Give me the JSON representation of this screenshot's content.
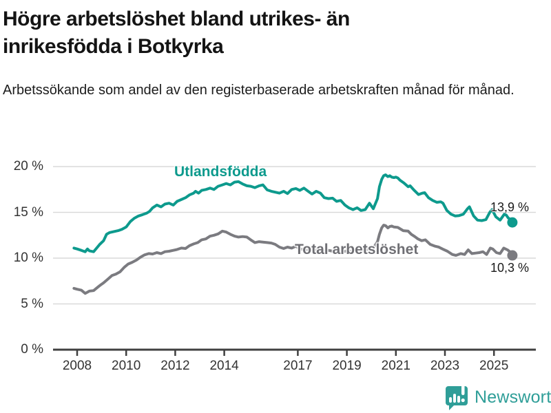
{
  "header": {
    "title_lines": [
      "Högre arbetslöshet bland utrikes- än",
      "inrikesfödda i Botkyrka"
    ],
    "subtitle": "Arbetssökande som andel av den registerbaserade arbetskraften månad för månad."
  },
  "footer": {
    "brand": "Newsworthy"
  },
  "colors": {
    "series1": "#0d9a8d",
    "series2": "#7b7b80",
    "grid": "#d9d9d9",
    "axis": "#3f3f3f",
    "brand": "#2f9e98"
  },
  "chart_data": {
    "type": "line",
    "title": "Högre arbetslöshet bland utrikes- än inrikesfödda i Botkyrka",
    "subtitle": "Arbetssökande som andel av den registerbaserade arbetskraften månad för månad.",
    "xlabel": "",
    "ylabel": "",
    "xlim": [
      2007.8,
      2026.3
    ],
    "ylim": [
      0,
      21
    ],
    "grid": true,
    "legend_position": "inline-labels",
    "x_ticks": [
      2008,
      2010,
      2012,
      2014,
      2017,
      2019,
      2021,
      2023,
      2025
    ],
    "y_ticks": [
      {
        "label": "20 %",
        "value": 20
      },
      {
        "label": "15 %",
        "value": 15
      },
      {
        "label": "10 %",
        "value": 10
      },
      {
        "label": "5 %",
        "value": 5
      },
      {
        "label": "0 %",
        "value": 0
      }
    ],
    "series": [
      {
        "name": "Utlandsfödda",
        "color": "#0d9a8d",
        "end_label": "13,9 %",
        "end_value": 13.9,
        "points": [
          [
            2007.87,
            11.1
          ],
          [
            2008.0,
            11.0
          ],
          [
            2008.17,
            10.85
          ],
          [
            2008.33,
            10.7
          ],
          [
            2008.42,
            11.0
          ],
          [
            2008.5,
            10.8
          ],
          [
            2008.67,
            10.7
          ],
          [
            2008.83,
            11.2
          ],
          [
            2008.92,
            11.5
          ],
          [
            2009.08,
            11.9
          ],
          [
            2009.2,
            12.6
          ],
          [
            2009.33,
            12.8
          ],
          [
            2009.5,
            12.9
          ],
          [
            2009.67,
            13.0
          ],
          [
            2009.83,
            13.15
          ],
          [
            2010.0,
            13.4
          ],
          [
            2010.17,
            14.0
          ],
          [
            2010.33,
            14.35
          ],
          [
            2010.5,
            14.6
          ],
          [
            2010.67,
            14.75
          ],
          [
            2010.83,
            14.9
          ],
          [
            2010.95,
            15.1
          ],
          [
            2011.08,
            15.5
          ],
          [
            2011.25,
            15.8
          ],
          [
            2011.42,
            15.6
          ],
          [
            2011.58,
            15.9
          ],
          [
            2011.75,
            16.0
          ],
          [
            2011.92,
            15.8
          ],
          [
            2012.08,
            16.2
          ],
          [
            2012.25,
            16.4
          ],
          [
            2012.42,
            16.6
          ],
          [
            2012.58,
            16.9
          ],
          [
            2012.75,
            17.1
          ],
          [
            2012.83,
            17.3
          ],
          [
            2012.95,
            17.1
          ],
          [
            2013.08,
            17.4
          ],
          [
            2013.25,
            17.5
          ],
          [
            2013.42,
            17.65
          ],
          [
            2013.58,
            17.5
          ],
          [
            2013.75,
            17.85
          ],
          [
            2013.92,
            18.0
          ],
          [
            2014.08,
            18.15
          ],
          [
            2014.25,
            18.0
          ],
          [
            2014.42,
            18.3
          ],
          [
            2014.58,
            18.35
          ],
          [
            2014.75,
            18.1
          ],
          [
            2014.92,
            17.9
          ],
          [
            2015.08,
            17.85
          ],
          [
            2015.25,
            17.7
          ],
          [
            2015.42,
            17.9
          ],
          [
            2015.58,
            18.0
          ],
          [
            2015.75,
            17.45
          ],
          [
            2015.92,
            17.3
          ],
          [
            2016.08,
            17.2
          ],
          [
            2016.25,
            17.1
          ],
          [
            2016.42,
            17.3
          ],
          [
            2016.58,
            17.05
          ],
          [
            2016.75,
            17.5
          ],
          [
            2016.92,
            17.6
          ],
          [
            2017.08,
            17.4
          ],
          [
            2017.25,
            17.65
          ],
          [
            2017.42,
            17.3
          ],
          [
            2017.58,
            17.0
          ],
          [
            2017.75,
            17.3
          ],
          [
            2017.92,
            17.1
          ],
          [
            2018.08,
            16.6
          ],
          [
            2018.25,
            16.5
          ],
          [
            2018.42,
            16.55
          ],
          [
            2018.58,
            16.2
          ],
          [
            2018.75,
            16.3
          ],
          [
            2018.92,
            15.8
          ],
          [
            2019.08,
            15.5
          ],
          [
            2019.25,
            15.3
          ],
          [
            2019.42,
            15.5
          ],
          [
            2019.58,
            15.2
          ],
          [
            2019.75,
            15.3
          ],
          [
            2019.92,
            16.0
          ],
          [
            2020.0,
            15.7
          ],
          [
            2020.08,
            15.4
          ],
          [
            2020.25,
            16.5
          ],
          [
            2020.33,
            17.8
          ],
          [
            2020.42,
            18.6
          ],
          [
            2020.5,
            19.0
          ],
          [
            2020.58,
            19.1
          ],
          [
            2020.67,
            18.9
          ],
          [
            2020.75,
            19.0
          ],
          [
            2020.83,
            18.85
          ],
          [
            2020.92,
            18.8
          ],
          [
            2021.0,
            18.85
          ],
          [
            2021.08,
            18.75
          ],
          [
            2021.17,
            18.5
          ],
          [
            2021.33,
            18.2
          ],
          [
            2021.5,
            17.8
          ],
          [
            2021.58,
            17.9
          ],
          [
            2021.75,
            17.4
          ],
          [
            2021.92,
            16.95
          ],
          [
            2022.08,
            17.1
          ],
          [
            2022.17,
            17.15
          ],
          [
            2022.33,
            16.6
          ],
          [
            2022.5,
            16.3
          ],
          [
            2022.67,
            16.1
          ],
          [
            2022.83,
            16.15
          ],
          [
            2022.92,
            16.0
          ],
          [
            2023.08,
            15.2
          ],
          [
            2023.25,
            14.8
          ],
          [
            2023.42,
            14.6
          ],
          [
            2023.58,
            14.65
          ],
          [
            2023.75,
            14.8
          ],
          [
            2023.92,
            15.4
          ],
          [
            2024.0,
            15.6
          ],
          [
            2024.17,
            14.6
          ],
          [
            2024.33,
            14.15
          ],
          [
            2024.5,
            14.1
          ],
          [
            2024.67,
            14.2
          ],
          [
            2024.83,
            15.0
          ],
          [
            2024.92,
            15.3
          ],
          [
            2025.08,
            14.5
          ],
          [
            2025.25,
            14.15
          ],
          [
            2025.42,
            14.8
          ],
          [
            2025.5,
            14.7
          ],
          [
            2025.58,
            14.4
          ],
          [
            2025.67,
            14.2
          ],
          [
            2025.75,
            13.9
          ]
        ]
      },
      {
        "name": "Total arbetslöshet",
        "color": "#7b7b80",
        "end_label": "10,3 %",
        "end_value": 10.3,
        "points": [
          [
            2007.87,
            6.7
          ],
          [
            2008.0,
            6.6
          ],
          [
            2008.17,
            6.5
          ],
          [
            2008.33,
            6.15
          ],
          [
            2008.5,
            6.4
          ],
          [
            2008.67,
            6.45
          ],
          [
            2008.83,
            6.8
          ],
          [
            2008.92,
            7.0
          ],
          [
            2009.08,
            7.3
          ],
          [
            2009.25,
            7.7
          ],
          [
            2009.42,
            8.1
          ],
          [
            2009.58,
            8.25
          ],
          [
            2009.75,
            8.5
          ],
          [
            2009.92,
            9.0
          ],
          [
            2010.08,
            9.35
          ],
          [
            2010.25,
            9.55
          ],
          [
            2010.42,
            9.8
          ],
          [
            2010.58,
            10.1
          ],
          [
            2010.75,
            10.35
          ],
          [
            2010.92,
            10.5
          ],
          [
            2011.08,
            10.45
          ],
          [
            2011.25,
            10.6
          ],
          [
            2011.42,
            10.5
          ],
          [
            2011.58,
            10.7
          ],
          [
            2011.75,
            10.75
          ],
          [
            2011.92,
            10.85
          ],
          [
            2012.08,
            10.95
          ],
          [
            2012.25,
            11.1
          ],
          [
            2012.42,
            11.05
          ],
          [
            2012.58,
            11.35
          ],
          [
            2012.75,
            11.55
          ],
          [
            2012.92,
            11.7
          ],
          [
            2013.08,
            12.0
          ],
          [
            2013.25,
            12.1
          ],
          [
            2013.42,
            12.4
          ],
          [
            2013.58,
            12.5
          ],
          [
            2013.75,
            12.65
          ],
          [
            2013.92,
            12.95
          ],
          [
            2014.08,
            12.85
          ],
          [
            2014.25,
            12.6
          ],
          [
            2014.42,
            12.4
          ],
          [
            2014.58,
            12.3
          ],
          [
            2014.75,
            12.35
          ],
          [
            2014.92,
            12.3
          ],
          [
            2015.08,
            12.0
          ],
          [
            2015.25,
            11.7
          ],
          [
            2015.42,
            11.8
          ],
          [
            2015.58,
            11.75
          ],
          [
            2015.75,
            11.7
          ],
          [
            2015.92,
            11.65
          ],
          [
            2016.08,
            11.5
          ],
          [
            2016.25,
            11.2
          ],
          [
            2016.42,
            11.05
          ],
          [
            2016.58,
            11.2
          ],
          [
            2016.75,
            11.1
          ],
          [
            2016.92,
            11.3
          ],
          [
            2017.08,
            11.0
          ],
          [
            2017.25,
            10.95
          ],
          [
            2017.42,
            10.9
          ],
          [
            2017.58,
            10.85
          ],
          [
            2017.75,
            10.9
          ],
          [
            2017.92,
            10.85
          ],
          [
            2018.08,
            10.8
          ],
          [
            2018.25,
            10.85
          ],
          [
            2018.42,
            10.75
          ],
          [
            2018.58,
            10.8
          ],
          [
            2018.75,
            10.7
          ],
          [
            2018.92,
            10.75
          ],
          [
            2019.08,
            10.8
          ],
          [
            2019.25,
            10.7
          ],
          [
            2019.42,
            10.75
          ],
          [
            2019.58,
            10.8
          ],
          [
            2019.75,
            10.9
          ],
          [
            2019.92,
            11.0
          ],
          [
            2020.08,
            11.1
          ],
          [
            2020.25,
            11.8
          ],
          [
            2020.33,
            12.6
          ],
          [
            2020.42,
            13.3
          ],
          [
            2020.5,
            13.6
          ],
          [
            2020.58,
            13.55
          ],
          [
            2020.67,
            13.3
          ],
          [
            2020.75,
            13.45
          ],
          [
            2020.83,
            13.5
          ],
          [
            2020.92,
            13.4
          ],
          [
            2021.08,
            13.35
          ],
          [
            2021.3,
            13.0
          ],
          [
            2021.5,
            12.95
          ],
          [
            2021.63,
            12.6
          ],
          [
            2021.77,
            12.35
          ],
          [
            2021.9,
            12.1
          ],
          [
            2022.05,
            11.9
          ],
          [
            2022.2,
            12.0
          ],
          [
            2022.4,
            11.5
          ],
          [
            2022.6,
            11.3
          ],
          [
            2022.75,
            11.2
          ],
          [
            2022.9,
            11.0
          ],
          [
            2023.1,
            10.75
          ],
          [
            2023.3,
            10.4
          ],
          [
            2023.45,
            10.3
          ],
          [
            2023.65,
            10.5
          ],
          [
            2023.8,
            10.4
          ],
          [
            2023.95,
            10.9
          ],
          [
            2024.1,
            10.5
          ],
          [
            2024.25,
            10.55
          ],
          [
            2024.4,
            10.6
          ],
          [
            2024.55,
            10.7
          ],
          [
            2024.7,
            10.4
          ],
          [
            2024.85,
            11.1
          ],
          [
            2024.95,
            11.0
          ],
          [
            2025.1,
            10.6
          ],
          [
            2025.25,
            10.5
          ],
          [
            2025.4,
            11.1
          ],
          [
            2025.55,
            10.9
          ],
          [
            2025.65,
            10.7
          ],
          [
            2025.75,
            10.3
          ]
        ]
      }
    ]
  }
}
